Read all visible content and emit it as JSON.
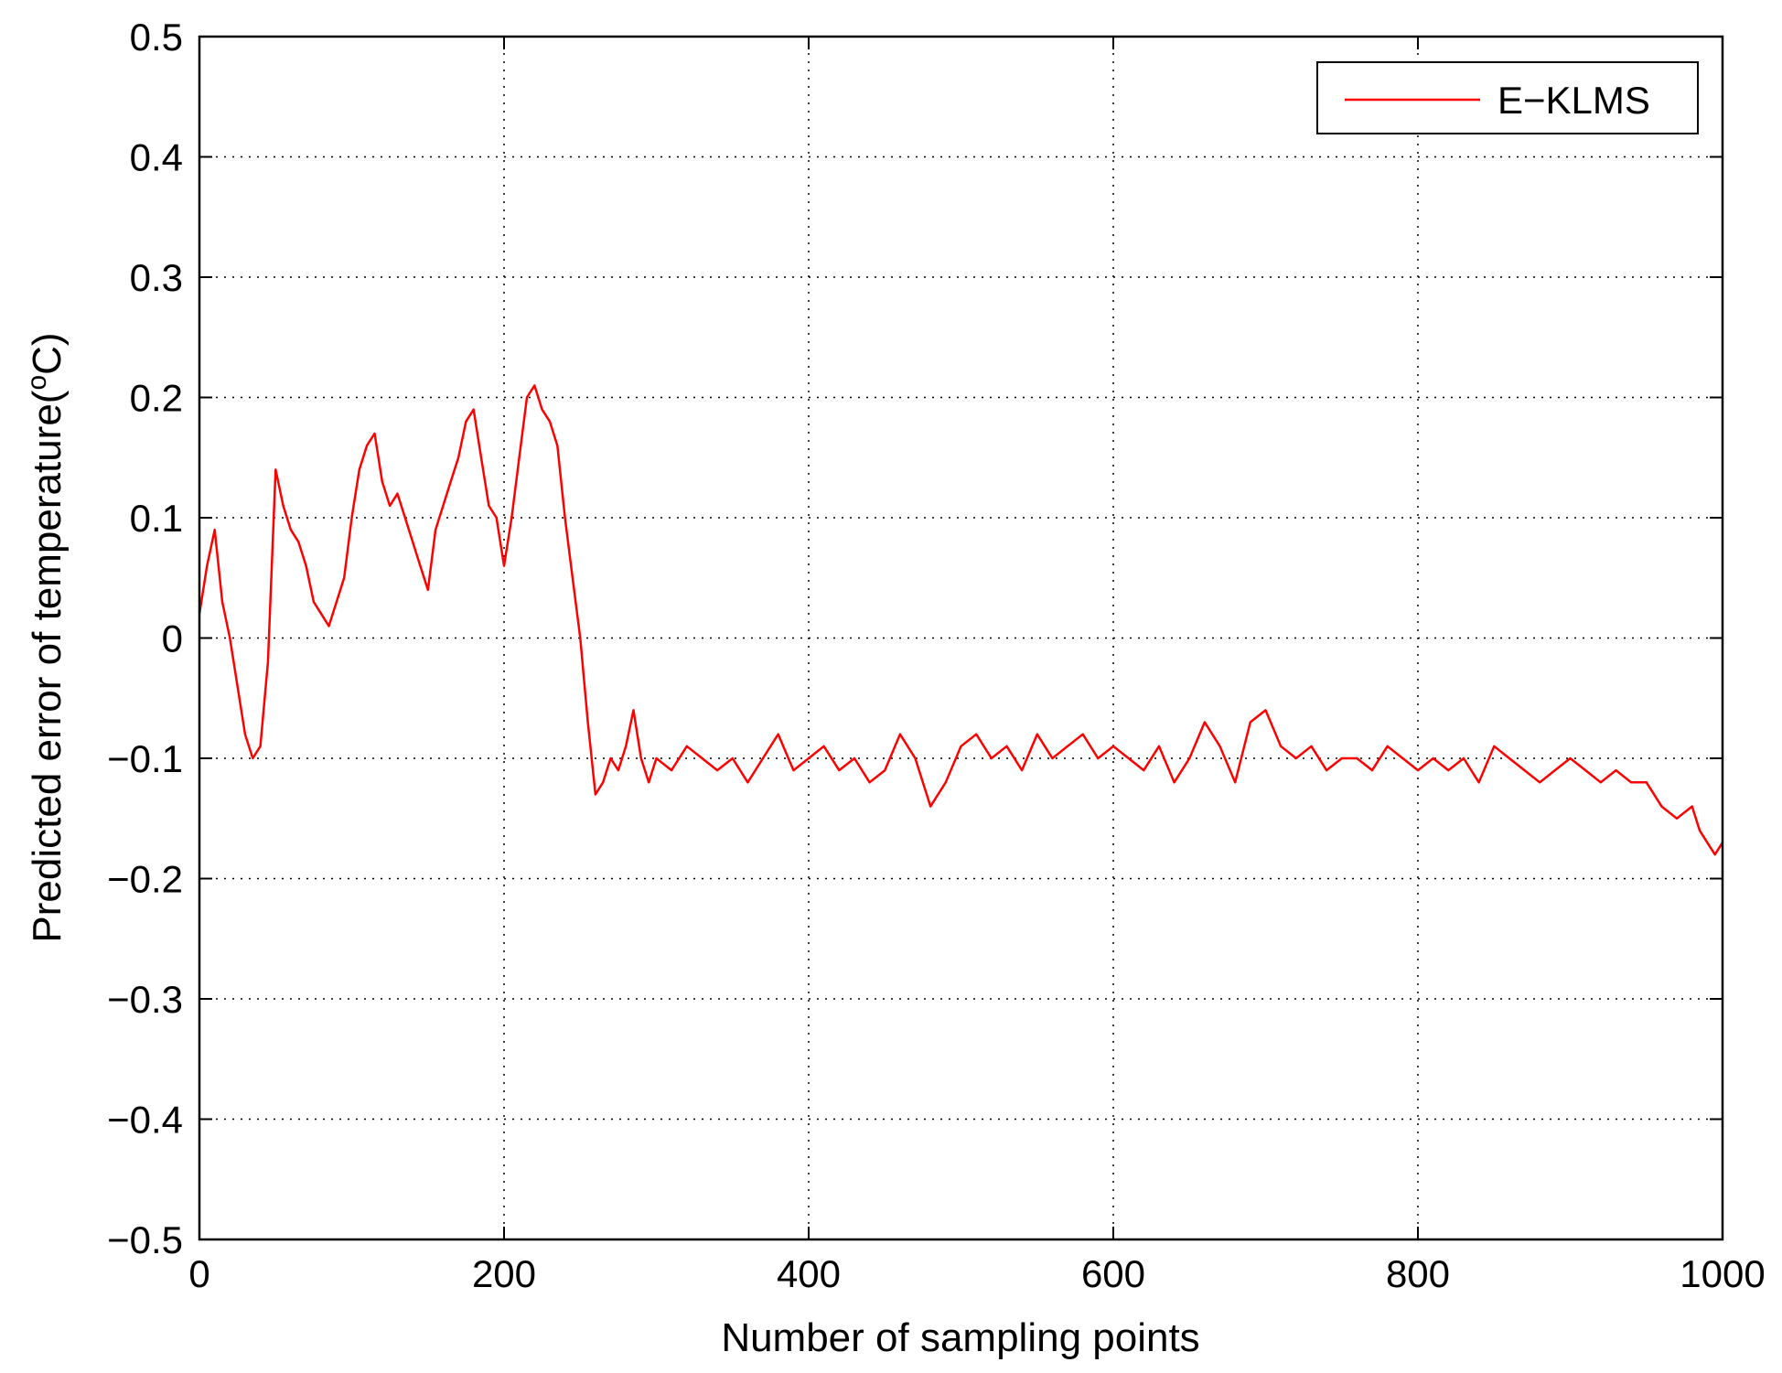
{
  "chart_data": {
    "type": "line",
    "xlabel": "Number of sampling points",
    "ylabel_main": "Predicted error of temperature(",
    "ylabel_sup": "o",
    "ylabel_tail": "C)",
    "xlim": [
      0,
      1000
    ],
    "ylim": [
      -0.5,
      0.5
    ],
    "xticks": [
      0,
      200,
      400,
      600,
      800,
      1000
    ],
    "yticks": [
      -0.5,
      -0.4,
      -0.3,
      -0.2,
      -0.1,
      0,
      0.1,
      0.2,
      0.3,
      0.4,
      0.5
    ],
    "xtick_labels": [
      "0",
      "200",
      "400",
      "600",
      "800",
      "1000"
    ],
    "ytick_labels": [
      "−0.5",
      "−0.4",
      "−0.3",
      "−0.2",
      "−0.1",
      "0",
      "0.1",
      "0.2",
      "0.3",
      "0.4",
      "0.5"
    ],
    "grid": true,
    "legend_position": "top-right",
    "series": [
      {
        "name": "E−KLMS",
        "color": "#ff0000",
        "x": [
          0,
          5,
          10,
          15,
          20,
          25,
          30,
          35,
          40,
          45,
          50,
          55,
          60,
          65,
          70,
          75,
          80,
          85,
          90,
          95,
          100,
          105,
          110,
          115,
          120,
          125,
          130,
          135,
          140,
          145,
          150,
          155,
          160,
          165,
          170,
          175,
          180,
          185,
          190,
          195,
          200,
          205,
          210,
          215,
          220,
          225,
          230,
          235,
          240,
          245,
          250,
          255,
          260,
          265,
          270,
          275,
          280,
          285,
          290,
          295,
          300,
          310,
          320,
          330,
          340,
          350,
          360,
          370,
          380,
          390,
          400,
          410,
          420,
          430,
          440,
          450,
          460,
          470,
          480,
          490,
          500,
          510,
          520,
          530,
          540,
          550,
          560,
          570,
          580,
          590,
          600,
          610,
          620,
          630,
          640,
          650,
          660,
          670,
          680,
          690,
          700,
          710,
          720,
          730,
          740,
          750,
          760,
          770,
          780,
          790,
          800,
          810,
          820,
          830,
          840,
          850,
          860,
          870,
          880,
          890,
          900,
          910,
          920,
          930,
          940,
          950,
          960,
          970,
          980,
          985,
          990,
          995,
          1000
        ],
        "y": [
          0.02,
          0.06,
          0.09,
          0.03,
          0.0,
          -0.04,
          -0.08,
          -0.1,
          -0.09,
          -0.02,
          0.14,
          0.11,
          0.09,
          0.08,
          0.06,
          0.03,
          0.02,
          0.01,
          0.03,
          0.05,
          0.1,
          0.14,
          0.16,
          0.17,
          0.13,
          0.11,
          0.12,
          0.1,
          0.08,
          0.06,
          0.04,
          0.09,
          0.11,
          0.13,
          0.15,
          0.18,
          0.19,
          0.15,
          0.11,
          0.1,
          0.06,
          0.1,
          0.15,
          0.2,
          0.21,
          0.19,
          0.18,
          0.16,
          0.1,
          0.05,
          0.0,
          -0.07,
          -0.13,
          -0.12,
          -0.1,
          -0.11,
          -0.09,
          -0.06,
          -0.1,
          -0.12,
          -0.1,
          -0.11,
          -0.09,
          -0.1,
          -0.11,
          -0.1,
          -0.12,
          -0.1,
          -0.08,
          -0.11,
          -0.1,
          -0.09,
          -0.11,
          -0.1,
          -0.12,
          -0.11,
          -0.08,
          -0.1,
          -0.14,
          -0.12,
          -0.09,
          -0.08,
          -0.1,
          -0.09,
          -0.11,
          -0.08,
          -0.1,
          -0.09,
          -0.08,
          -0.1,
          -0.09,
          -0.1,
          -0.11,
          -0.09,
          -0.12,
          -0.1,
          -0.07,
          -0.09,
          -0.12,
          -0.07,
          -0.06,
          -0.09,
          -0.1,
          -0.09,
          -0.11,
          -0.1,
          -0.1,
          -0.11,
          -0.09,
          -0.1,
          -0.11,
          -0.1,
          -0.11,
          -0.1,
          -0.12,
          -0.09,
          -0.1,
          -0.11,
          -0.12,
          -0.11,
          -0.1,
          -0.11,
          -0.12,
          -0.11,
          -0.12,
          -0.12,
          -0.14,
          -0.15,
          -0.14,
          -0.16,
          -0.17,
          -0.18,
          -0.17
        ]
      }
    ]
  }
}
